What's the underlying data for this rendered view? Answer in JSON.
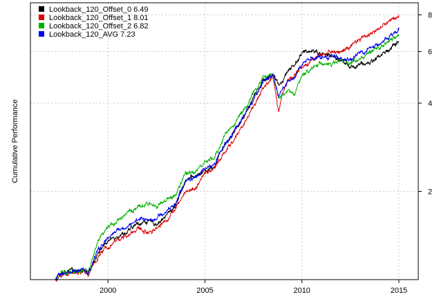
{
  "chart_data": {
    "type": "line",
    "title": "",
    "xlabel": "",
    "ylabel": "Cumulative Performance",
    "y_scale": "log",
    "xlim": [
      1996.0,
      2016.0
    ],
    "ylim": [
      1.0,
      8.8
    ],
    "x_ticks": [
      2000,
      2005,
      2010,
      2015
    ],
    "x_tick_labels": [
      "2000",
      "2005",
      "2010",
      "2015"
    ],
    "y_ticks": [
      2,
      4,
      6,
      8
    ],
    "y_tick_labels": [
      "2",
      "4",
      "6",
      "8"
    ],
    "y_axis_side": "right",
    "grid": true,
    "legend_position": "top-left",
    "series": [
      {
        "name": "Lookback_120_Offset_0 6.49",
        "color": "#000000",
        "x": [
          1996.8,
          1997.3,
          1997.6,
          1998.0,
          1998.4,
          1998.7,
          1999.0,
          1999.5,
          2000.0,
          2000.5,
          2001.0,
          2001.5,
          2002.0,
          2002.5,
          2003.0,
          2003.5,
          2004.0,
          2004.5,
          2005.0,
          2005.5,
          2006.0,
          2006.5,
          2007.0,
          2007.5,
          2008.0,
          2008.5,
          2008.8,
          2009.0,
          2009.3,
          2009.6,
          2010.0,
          2010.5,
          2011.0,
          2011.5,
          2012.0,
          2012.5,
          2013.0,
          2013.5,
          2014.0,
          2014.5,
          2015.0
        ],
        "values": [
          1.0,
          1.0,
          1.05,
          1.07,
          1.06,
          1.08,
          1.05,
          1.25,
          1.35,
          1.42,
          1.45,
          1.55,
          1.58,
          1.55,
          1.65,
          1.8,
          2.2,
          2.25,
          2.35,
          2.45,
          2.9,
          3.2,
          3.6,
          4.2,
          4.8,
          5.0,
          4.6,
          4.8,
          5.2,
          5.4,
          5.9,
          6.1,
          5.9,
          5.8,
          5.6,
          5.3,
          5.4,
          5.5,
          5.8,
          6.1,
          6.49
        ]
      },
      {
        "name": "Lookback_120_Offset_1 8.01",
        "color": "#dd0000",
        "x": [
          1996.8,
          1997.3,
          1997.6,
          1998.0,
          1998.4,
          1998.7,
          1999.0,
          1999.5,
          2000.0,
          2000.5,
          2001.0,
          2001.5,
          2002.0,
          2002.5,
          2003.0,
          2003.5,
          2004.0,
          2004.5,
          2005.0,
          2005.5,
          2006.0,
          2006.5,
          2007.0,
          2007.5,
          2008.0,
          2008.5,
          2008.8,
          2009.0,
          2009.3,
          2009.6,
          2010.0,
          2010.5,
          2011.0,
          2011.5,
          2012.0,
          2012.5,
          2013.0,
          2013.5,
          2014.0,
          2014.5,
          2015.0
        ],
        "values": [
          1.0,
          1.0,
          1.04,
          1.06,
          1.05,
          1.07,
          1.04,
          1.2,
          1.3,
          1.38,
          1.4,
          1.5,
          1.45,
          1.5,
          1.6,
          1.75,
          2.0,
          2.05,
          2.3,
          2.4,
          2.7,
          3.0,
          3.4,
          3.9,
          4.5,
          4.9,
          3.7,
          4.4,
          4.8,
          5.0,
          5.3,
          5.6,
          5.8,
          6.0,
          6.0,
          6.2,
          6.6,
          6.9,
          7.2,
          7.6,
          8.01
        ]
      },
      {
        "name": "Lookback_120_Offset_2 6.82",
        "color": "#00b000",
        "x": [
          1996.8,
          1997.3,
          1997.6,
          1998.0,
          1998.4,
          1998.7,
          1999.0,
          1999.5,
          2000.0,
          2000.5,
          2001.0,
          2001.5,
          2002.0,
          2002.5,
          2003.0,
          2003.5,
          2004.0,
          2004.5,
          2005.0,
          2005.5,
          2006.0,
          2006.5,
          2007.0,
          2007.5,
          2008.0,
          2008.5,
          2008.8,
          2009.0,
          2009.3,
          2009.6,
          2010.0,
          2010.5,
          2011.0,
          2011.5,
          2012.0,
          2012.5,
          2013.0,
          2013.5,
          2014.0,
          2014.5,
          2015.0
        ],
        "values": [
          1.0,
          1.0,
          1.05,
          1.07,
          1.07,
          1.09,
          1.06,
          1.35,
          1.5,
          1.6,
          1.7,
          1.75,
          1.8,
          1.8,
          1.85,
          1.95,
          2.3,
          2.35,
          2.5,
          2.6,
          3.1,
          3.4,
          3.8,
          4.3,
          4.9,
          5.0,
          4.2,
          4.3,
          4.4,
          4.3,
          4.9,
          5.3,
          5.5,
          5.4,
          5.6,
          5.5,
          5.7,
          5.9,
          6.2,
          6.5,
          6.82
        ]
      },
      {
        "name": "Lookback_120_AVG 7.23",
        "color": "#0000ee",
        "x": [
          1996.8,
          1997.3,
          1997.6,
          1998.0,
          1998.4,
          1998.7,
          1999.0,
          1999.5,
          2000.0,
          2000.5,
          2001.0,
          2001.5,
          2002.0,
          2002.5,
          2003.0,
          2003.5,
          2004.0,
          2004.5,
          2005.0,
          2005.5,
          2006.0,
          2006.5,
          2007.0,
          2007.5,
          2008.0,
          2008.5,
          2008.8,
          2009.0,
          2009.3,
          2009.6,
          2010.0,
          2010.5,
          2011.0,
          2011.5,
          2012.0,
          2012.5,
          2013.0,
          2013.5,
          2014.0,
          2014.5,
          2015.0
        ],
        "values": [
          1.0,
          1.0,
          1.05,
          1.06,
          1.06,
          1.08,
          1.05,
          1.27,
          1.38,
          1.47,
          1.52,
          1.6,
          1.61,
          1.62,
          1.7,
          1.83,
          2.17,
          2.22,
          2.38,
          2.48,
          2.9,
          3.2,
          3.6,
          4.1,
          4.7,
          5.0,
          4.2,
          4.5,
          4.8,
          4.9,
          5.4,
          5.7,
          5.7,
          5.75,
          5.7,
          5.65,
          5.9,
          6.1,
          6.4,
          6.7,
          7.23
        ]
      }
    ]
  }
}
